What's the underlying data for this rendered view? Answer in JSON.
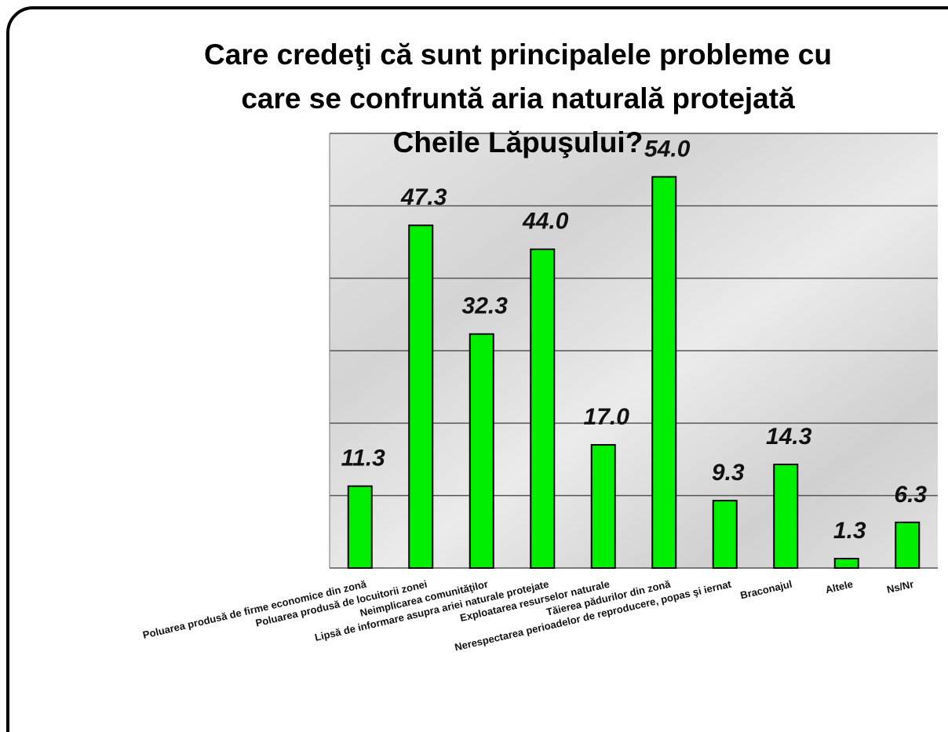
{
  "chart_data": {
    "type": "bar",
    "title": [
      "Care credeţi că sunt principalele probleme cu",
      "care se confruntă aria naturală protejată",
      "Cheile Lăpuşului?"
    ],
    "categories": [
      "Poluarea produsă de firme economice din zonă",
      "Poluarea produsă de locuitorii zonei",
      "Neimplicarea comunităţilor",
      "Lipsă de informare asupra ariei naturale protejate",
      "Exploatarea resurselor naturale",
      "Tăierea pădurilor din zonă",
      "Nerespectarea perioadelor de reproducere, popas şi iernat",
      "Braconajul",
      "Altele",
      "Ns/Nr"
    ],
    "values": [
      11.3,
      47.3,
      32.3,
      44.0,
      17.0,
      54.0,
      9.3,
      14.3,
      1.3,
      6.3
    ],
    "value_labels": [
      "11.3",
      "47.3",
      "32.3",
      "44.0",
      "17.0",
      "54.0",
      "9.3",
      "14.3",
      "1.3",
      "6.3"
    ],
    "color": "#00ee00",
    "ylim": [
      0,
      60
    ],
    "yticks": [
      0,
      10,
      20,
      30,
      40,
      50,
      60
    ],
    "grid": true
  }
}
